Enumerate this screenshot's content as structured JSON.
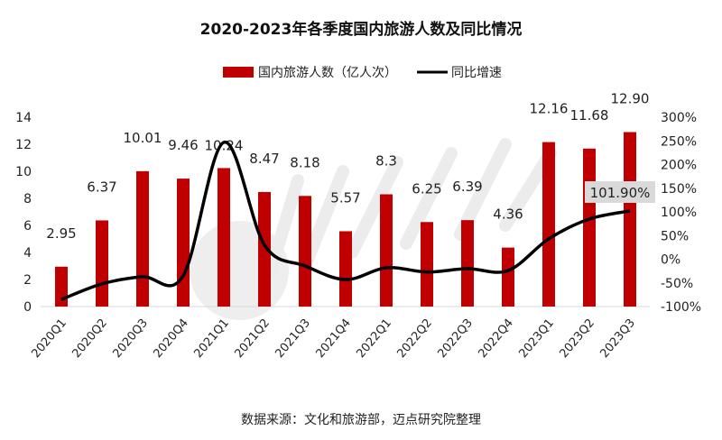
{
  "chart_data": {
    "type": "bar+line",
    "title": "2020-2023年各季度国内旅游人数及同比情况",
    "categories": [
      "2020Q1",
      "2020Q2",
      "2020Q3",
      "2020Q4",
      "2021Q1",
      "2021Q2",
      "2021Q3",
      "2021Q4",
      "2022Q1",
      "2022Q2",
      "2022Q3",
      "2022Q4",
      "2023Q1",
      "2023Q2",
      "2023Q3"
    ],
    "series": [
      {
        "name": "国内旅游人数（亿人次）",
        "type": "bar",
        "axis": "left",
        "color": "#C00000",
        "values": [
          2.95,
          6.37,
          10.01,
          9.46,
          10.24,
          8.47,
          8.18,
          5.57,
          8.3,
          6.25,
          6.39,
          4.36,
          12.16,
          11.68,
          12.9
        ],
        "labels": [
          "2.95",
          "6.37",
          "10.01",
          "9.46",
          "10.24",
          "8.47",
          "8.18",
          "5.57",
          "8.3",
          "6.25",
          "6.39",
          "4.36",
          "12.16",
          "11.68",
          "12.90"
        ]
      },
      {
        "name": "同比增速",
        "type": "line",
        "axis": "right",
        "color": "#000000",
        "values": [
          -85,
          -52,
          -37,
          -35,
          247,
          30,
          -14,
          -43,
          -18,
          -27,
          -20,
          -24,
          43,
          85,
          101.9
        ],
        "last_label": "101.90%"
      }
    ],
    "left_axis": {
      "min": 0,
      "max": 14,
      "ticks": [
        "0",
        "2",
        "4",
        "6",
        "8",
        "10",
        "12",
        "14"
      ]
    },
    "right_axis": {
      "min": -100,
      "max": 300,
      "ticks": [
        "-100%",
        "-50%",
        "0%",
        "50%",
        "100%",
        "150%",
        "200%",
        "250%",
        "300%"
      ]
    },
    "legend_position": "top",
    "grid": false
  },
  "source": "数据来源：文化和旅游部，迈点研究院整理",
  "watermark": "迈点研究院 MEADIN ACADEMY"
}
